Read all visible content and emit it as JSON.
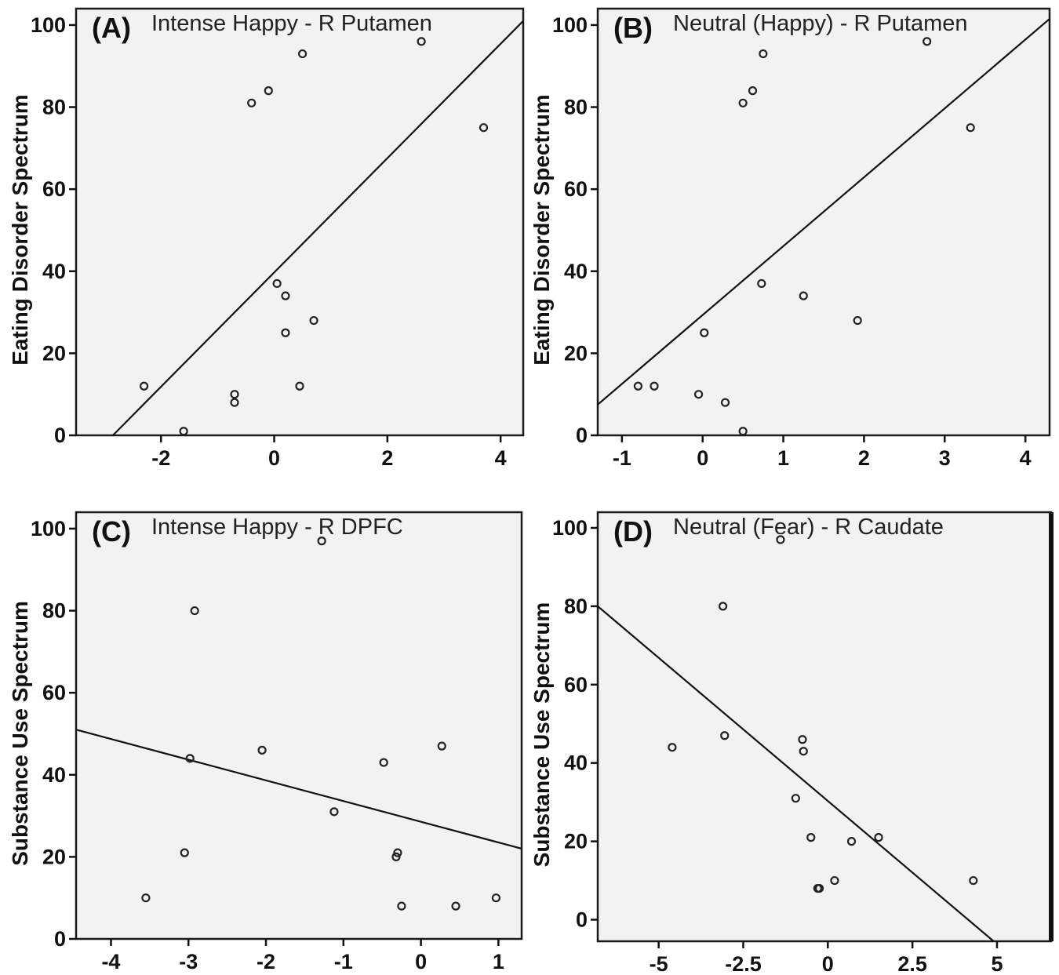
{
  "chart_data": [
    {
      "type": "scatter",
      "panel_label": "(A)",
      "title": "Intense Happy - R Putamen",
      "xlabel": "",
      "ylabel": "Eating Disorder Spectrum",
      "xlim": [
        -3.5,
        4.4
      ],
      "ylim": [
        0,
        104
      ],
      "xticks": [
        -2,
        0,
        2,
        4
      ],
      "yticks": [
        0,
        20,
        40,
        60,
        80,
        100
      ],
      "grid": false,
      "points": [
        {
          "x": -2.3,
          "y": 12
        },
        {
          "x": -1.6,
          "y": 1
        },
        {
          "x": -0.7,
          "y": 10
        },
        {
          "x": -0.7,
          "y": 8
        },
        {
          "x": -0.4,
          "y": 81
        },
        {
          "x": -0.1,
          "y": 84
        },
        {
          "x": 0.05,
          "y": 37
        },
        {
          "x": 0.2,
          "y": 34
        },
        {
          "x": 0.2,
          "y": 25
        },
        {
          "x": 0.45,
          "y": 12
        },
        {
          "x": 0.5,
          "y": 93
        },
        {
          "x": 0.7,
          "y": 28
        },
        {
          "x": 2.6,
          "y": 96
        },
        {
          "x": 3.7,
          "y": 75
        }
      ],
      "fit_line": {
        "x": [
          -2.85,
          4.4
        ],
        "y": [
          0,
          101
        ]
      }
    },
    {
      "type": "scatter",
      "panel_label": "(B)",
      "title": "Neutral (Happy) - R Putamen",
      "xlabel": "",
      "ylabel": "Eating Disorder Spectrum",
      "xlim": [
        -1.3,
        4.3
      ],
      "ylim": [
        0,
        104
      ],
      "xticks": [
        -1,
        0,
        1,
        2,
        3,
        4
      ],
      "yticks": [
        0,
        20,
        40,
        60,
        80,
        100
      ],
      "grid": false,
      "points": [
        {
          "x": -0.8,
          "y": 12
        },
        {
          "x": -0.6,
          "y": 12
        },
        {
          "x": -0.05,
          "y": 10
        },
        {
          "x": 0.02,
          "y": 25
        },
        {
          "x": 0.28,
          "y": 8
        },
        {
          "x": 0.5,
          "y": 81
        },
        {
          "x": 0.5,
          "y": 1
        },
        {
          "x": 0.62,
          "y": 84
        },
        {
          "x": 0.73,
          "y": 37
        },
        {
          "x": 0.75,
          "y": 93
        },
        {
          "x": 1.25,
          "y": 34
        },
        {
          "x": 1.92,
          "y": 28
        },
        {
          "x": 2.78,
          "y": 96
        },
        {
          "x": 3.32,
          "y": 75
        }
      ],
      "fit_line": {
        "x": [
          -1.3,
          4.3
        ],
        "y": [
          7.5,
          101.5
        ]
      }
    },
    {
      "type": "scatter",
      "panel_label": "(C)",
      "title": "Intense Happy - R DPFC",
      "xlabel": "",
      "ylabel": "Substance Use Spectrum",
      "xlim": [
        -4.45,
        1.3
      ],
      "ylim": [
        0,
        104
      ],
      "xticks": [
        -4,
        -3,
        -2,
        -1,
        0,
        1
      ],
      "yticks": [
        0,
        20,
        40,
        60,
        80,
        100
      ],
      "grid": false,
      "points": [
        {
          "x": -3.55,
          "y": 10
        },
        {
          "x": -3.05,
          "y": 21
        },
        {
          "x": -2.98,
          "y": 44
        },
        {
          "x": -2.92,
          "y": 80
        },
        {
          "x": -2.05,
          "y": 46
        },
        {
          "x": -1.28,
          "y": 97
        },
        {
          "x": -1.12,
          "y": 31
        },
        {
          "x": -0.48,
          "y": 43
        },
        {
          "x": -0.3,
          "y": 21
        },
        {
          "x": -0.32,
          "y": 20
        },
        {
          "x": -0.25,
          "y": 8
        },
        {
          "x": 0.27,
          "y": 47
        },
        {
          "x": 0.45,
          "y": 8
        },
        {
          "x": 0.97,
          "y": 10
        }
      ],
      "fit_line": {
        "x": [
          -4.45,
          1.3
        ],
        "y": [
          51,
          22
        ]
      }
    },
    {
      "type": "scatter",
      "panel_label": "(D)",
      "title": "Neutral (Fear) - R Caudate",
      "xlabel": "",
      "ylabel": "Substance Use Spectrum",
      "xlim": [
        -6.8,
        6.6
      ],
      "ylim": [
        -5.5,
        104
      ],
      "xticks": [
        -5,
        -2.5,
        0,
        2.5,
        5
      ],
      "xtick_labels": [
        "-5",
        "-2.5",
        "0",
        "2.5",
        "5"
      ],
      "yticks": [
        0,
        20,
        40,
        60,
        80,
        100
      ],
      "grid": false,
      "points": [
        {
          "x": -4.6,
          "y": 44
        },
        {
          "x": -3.1,
          "y": 80
        },
        {
          "x": -3.05,
          "y": 47
        },
        {
          "x": -1.4,
          "y": 97
        },
        {
          "x": -0.95,
          "y": 31
        },
        {
          "x": -0.75,
          "y": 46
        },
        {
          "x": -0.72,
          "y": 43
        },
        {
          "x": -0.5,
          "y": 21
        },
        {
          "x": -0.3,
          "y": 8
        },
        {
          "x": -0.25,
          "y": 8
        },
        {
          "x": 0.2,
          "y": 10
        },
        {
          "x": 0.7,
          "y": 20
        },
        {
          "x": 1.5,
          "y": 21
        },
        {
          "x": 4.3,
          "y": 10
        }
      ],
      "fit_line": {
        "x": [
          -6.8,
          4.9
        ],
        "y": [
          80,
          -5.5
        ]
      }
    }
  ]
}
